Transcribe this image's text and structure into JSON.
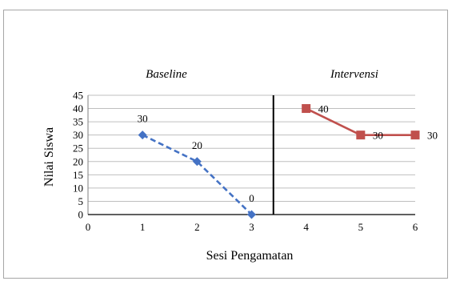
{
  "chart_data": {
    "type": "line",
    "title": "",
    "xlabel": "Sesi Pengamatan",
    "ylabel": "Nilai Siswa",
    "xlim": [
      0,
      6
    ],
    "ylim": [
      0,
      45
    ],
    "x_ticks": [
      "0",
      "1",
      "2",
      "3",
      "4",
      "5",
      "6"
    ],
    "y_ticks": [
      "0",
      "5",
      "10",
      "15",
      "20",
      "25",
      "30",
      "35",
      "40",
      "45"
    ],
    "grid": "horizontal",
    "phase_divider_x": 3.4,
    "phases": [
      {
        "label": "Baseline"
      },
      {
        "label": "Intervensi"
      }
    ],
    "series": [
      {
        "phase": "Baseline",
        "x": [
          1,
          2,
          3
        ],
        "y": [
          30,
          20,
          0
        ],
        "labels": [
          "30",
          "20",
          "0"
        ],
        "color": "#4472C4",
        "marker": "diamond",
        "line_style": "dashed"
      },
      {
        "phase": "Intervensi",
        "x": [
          4,
          5,
          6
        ],
        "y": [
          40,
          30,
          30
        ],
        "labels": [
          "40",
          "30",
          "30"
        ],
        "color": "#C0504D",
        "marker": "square",
        "line_style": "solid"
      }
    ]
  }
}
